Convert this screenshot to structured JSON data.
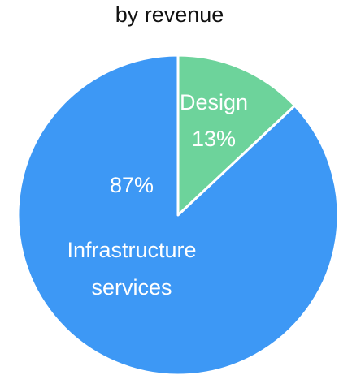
{
  "chart_data": {
    "type": "pie",
    "title": "by revenue",
    "slices": [
      {
        "label": "Design",
        "value": 13,
        "value_label": "13%",
        "color": "#6dd39b"
      },
      {
        "label": "Infrastructure services",
        "label_lines": [
          "Infrastructure",
          "services"
        ],
        "value": 87,
        "value_label": "87%",
        "color": "#3d98f5"
      }
    ],
    "start_angle": "12 o'clock",
    "direction": "clockwise",
    "slice_border_color": "#ffffff"
  }
}
